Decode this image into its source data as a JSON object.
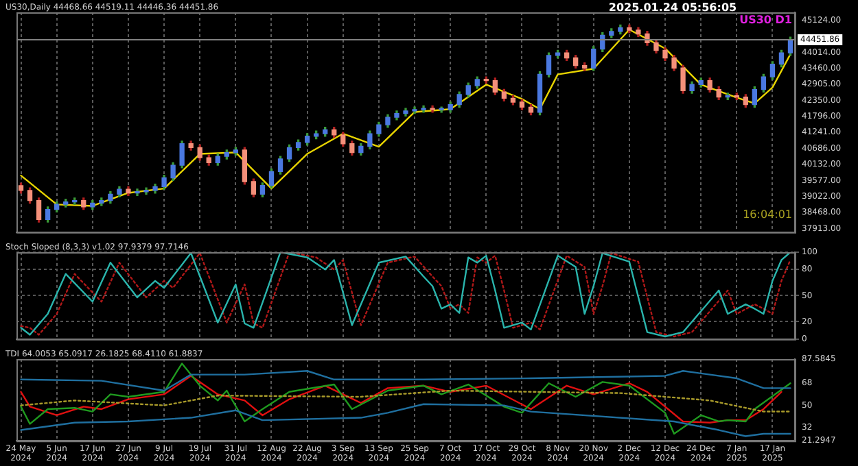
{
  "chart_data": [
    {
      "type": "candlestick",
      "title": "US30,Daily  44468.66 44519.11 44446.36 44451.86",
      "categories": [
        null,
        null,
        null,
        null,
        null,
        null,
        null,
        null,
        null,
        null,
        null,
        null,
        null,
        null,
        null,
        null,
        null,
        null,
        null,
        null,
        null,
        null,
        null,
        null,
        null,
        null,
        null,
        null,
        null,
        null,
        null,
        null,
        null,
        null,
        null,
        null,
        null,
        null,
        null,
        null,
        null,
        null,
        null,
        null,
        null,
        null,
        null,
        null,
        null,
        null,
        null,
        null,
        null,
        null,
        null,
        null,
        null,
        null,
        null,
        null,
        null,
        null,
        null,
        null,
        null,
        null,
        null,
        null,
        null,
        null,
        null,
        null,
        null,
        null,
        null,
        null,
        null,
        null,
        null,
        null,
        null,
        null,
        null,
        null,
        null,
        null,
        null
      ],
      "ohlc": [
        [
          39400,
          39490,
          39144,
          39234
        ],
        [
          39234,
          39324,
          38794,
          38884
        ],
        [
          38884,
          38974,
          38139,
          38229
        ],
        [
          38229,
          38668,
          38139,
          38578
        ],
        [
          38578,
          38843,
          38488,
          38753
        ],
        [
          38753,
          38930,
          38663,
          38840
        ],
        [
          38840,
          38974,
          38750,
          38884
        ],
        [
          38884,
          38974,
          38575,
          38665
        ],
        [
          38665,
          38886,
          38575,
          38796
        ],
        [
          38796,
          38974,
          38706,
          38884
        ],
        [
          38884,
          39193,
          38794,
          39103
        ],
        [
          39103,
          39367,
          39013,
          39277
        ],
        [
          39277,
          39367,
          39056,
          39146
        ],
        [
          39146,
          39280,
          39056,
          39190
        ],
        [
          39190,
          39324,
          39100,
          39234
        ],
        [
          39234,
          39455,
          39144,
          39365
        ],
        [
          39365,
          39761,
          39275,
          39671
        ],
        [
          39671,
          40198,
          39581,
          40108
        ],
        [
          40108,
          40941,
          40018,
          40851
        ],
        [
          40851,
          40941,
          40629,
          40719
        ],
        [
          40719,
          40809,
          40280,
          40370
        ],
        [
          40370,
          40460,
          40105,
          40195
        ],
        [
          40195,
          40504,
          40105,
          40414
        ],
        [
          40414,
          40635,
          40324,
          40545
        ],
        [
          40545,
          40722,
          40455,
          40632
        ],
        [
          40632,
          40722,
          39450,
          39540
        ],
        [
          39540,
          39630,
          39013,
          39103
        ],
        [
          39103,
          39498,
          39013,
          39408
        ],
        [
          39408,
          39979,
          39318,
          39889
        ],
        [
          39889,
          40416,
          39799,
          40326
        ],
        [
          40326,
          40809,
          40236,
          40719
        ],
        [
          40719,
          40984,
          40629,
          40894
        ],
        [
          40894,
          41203,
          40804,
          41113
        ],
        [
          41113,
          41290,
          41023,
          41200
        ],
        [
          41200,
          41421,
          41110,
          41331
        ],
        [
          41331,
          41421,
          41066,
          41156
        ],
        [
          41156,
          41246,
          40761,
          40851
        ],
        [
          40851,
          40941,
          40455,
          40545
        ],
        [
          40545,
          40853,
          40455,
          40763
        ],
        [
          40763,
          41290,
          40673,
          41200
        ],
        [
          41200,
          41596,
          41110,
          41506
        ],
        [
          41506,
          41858,
          41416,
          41768
        ],
        [
          41768,
          41989,
          41678,
          41899
        ],
        [
          41899,
          42077,
          41809,
          41987
        ],
        [
          41987,
          42120,
          41897,
          42030
        ],
        [
          42030,
          42164,
          41940,
          42074
        ],
        [
          42074,
          42164,
          41940,
          42030
        ],
        [
          42030,
          42120,
          41940,
          42030
        ],
        [
          42030,
          42295,
          41940,
          42205
        ],
        [
          42205,
          42645,
          42115,
          42555
        ],
        [
          42555,
          42951,
          42465,
          42861
        ],
        [
          42861,
          43169,
          42771,
          43079
        ],
        [
          43079,
          43169,
          42946,
          43036
        ],
        [
          43036,
          43126,
          42552,
          42642
        ],
        [
          42642,
          42732,
          42334,
          42424
        ],
        [
          42424,
          42514,
          42202,
          42292
        ],
        [
          42292,
          42382,
          42028,
          42118
        ],
        [
          42118,
          42208,
          41853,
          41943
        ],
        [
          41943,
          43344,
          41853,
          43254
        ],
        [
          43254,
          43999,
          43164,
          43909
        ],
        [
          43909,
          44087,
          43819,
          43997
        ],
        [
          43997,
          44087,
          43732,
          43822
        ],
        [
          43822,
          43912,
          43470,
          43560
        ],
        [
          43560,
          43650,
          43382,
          43472
        ],
        [
          43472,
          44218,
          43382,
          44128
        ],
        [
          44128,
          44699,
          44038,
          44609
        ],
        [
          44609,
          44830,
          44519,
          44740
        ],
        [
          44740,
          44961,
          44650,
          44871
        ],
        [
          44871,
          44961,
          44693,
          44783
        ],
        [
          44783,
          44873,
          44562,
          44652
        ],
        [
          44652,
          44742,
          44257,
          44347
        ],
        [
          44347,
          44437,
          43994,
          44084
        ],
        [
          44084,
          44174,
          43732,
          43822
        ],
        [
          43822,
          43912,
          43382,
          43472
        ],
        [
          43472,
          43562,
          42596,
          42686
        ],
        [
          42686,
          42994,
          42596,
          42904
        ],
        [
          42904,
          43126,
          42814,
          43036
        ],
        [
          43036,
          43126,
          42640,
          42730
        ],
        [
          42730,
          42820,
          42377,
          42467
        ],
        [
          42467,
          42601,
          42377,
          42511
        ],
        [
          42511,
          42601,
          42377,
          42467
        ],
        [
          42467,
          42557,
          42115,
          42205
        ],
        [
          42205,
          42820,
          42115,
          42730
        ],
        [
          42730,
          43257,
          42640,
          43167
        ],
        [
          43167,
          43694,
          43077,
          43604
        ],
        [
          43604,
          44087,
          43514,
          43997
        ],
        [
          43997,
          44542,
          43907,
          44452
        ]
      ],
      "series": [
        {
          "type": "line",
          "color": "#e8d400",
          "values": [
            39750,
            null,
            null,
            null,
            38750,
            null,
            null,
            null,
            38700,
            null,
            null,
            null,
            39150,
            null,
            null,
            null,
            39300,
            null,
            null,
            null,
            40500,
            null,
            null,
            null,
            40550,
            null,
            null,
            null,
            39300,
            null,
            null,
            null,
            40500,
            null,
            null,
            null,
            41200,
            null,
            null,
            null,
            40750,
            null,
            null,
            null,
            41950,
            null,
            null,
            null,
            42050,
            null,
            null,
            null,
            42900,
            null,
            null,
            null,
            42400,
            null,
            42050,
            null,
            43250,
            null,
            null,
            null,
            43450,
            null,
            null,
            null,
            44800,
            null,
            null,
            null,
            44150,
            null,
            null,
            null,
            42900,
            null,
            null,
            null,
            42450,
            null,
            42250,
            null,
            42800,
            null,
            43950
          ]
        }
      ],
      "ylim": [
        37790,
        45400
      ],
      "yticks": [
        {
          "value": 37913,
          "label": "37913.00"
        },
        {
          "value": 38468,
          "label": "38468.00"
        },
        {
          "value": 39022,
          "label": "39022.00"
        },
        {
          "value": 39577,
          "label": "39577.00"
        },
        {
          "value": 40132,
          "label": "40132.00"
        },
        {
          "value": 40686,
          "label": "40686.00"
        },
        {
          "value": 41241,
          "label": "41241.00"
        },
        {
          "value": 41796,
          "label": "41796.00"
        },
        {
          "value": 42350,
          "label": "42350.00"
        },
        {
          "value": 42905,
          "label": "42905.00"
        },
        {
          "value": 43460,
          "label": "43460.00"
        },
        {
          "value": 44014,
          "label": "44014.00"
        },
        {
          "value": 45124,
          "label": "45124.00"
        }
      ],
      "ref_lines": [
        {
          "axis": "y",
          "value": 44451.86,
          "label": "44451.86",
          "color": "#808080"
        }
      ],
      "annotations": [
        "2025.01.24 05:56:05",
        "US30 D1",
        "16:04:01"
      ],
      "grid": "x",
      "tick_labels": "y"
    },
    {
      "type": "line",
      "title": "Stoch Sloped (8,3,3) v1.02 97.9379 97.7146",
      "categories": [
        null,
        null,
        null,
        null,
        null,
        null,
        null,
        null,
        null,
        null,
        null,
        null,
        null,
        null,
        null,
        null,
        null,
        null,
        null,
        null,
        null,
        null,
        null,
        null,
        null,
        null,
        null,
        null,
        null,
        null,
        null,
        null,
        null,
        null,
        null,
        null,
        null,
        null,
        null,
        null,
        null,
        null,
        null,
        null,
        null,
        null,
        null,
        null,
        null,
        null,
        null,
        null,
        null,
        null,
        null,
        null,
        null,
        null,
        null,
        null,
        null,
        null,
        null,
        null,
        null,
        null,
        null,
        null,
        null,
        null,
        null,
        null,
        null,
        null,
        null,
        null,
        null,
        null,
        null,
        null,
        null,
        null,
        null,
        null,
        null,
        null,
        null
      ],
      "series": [
        {
          "color": "#2ab5ad",
          "values": [
            13,
            5,
            null,
            29,
            null,
            75,
            null,
            null,
            43,
            null,
            88,
            null,
            null,
            48,
            null,
            67,
            59,
            null,
            null,
            99,
            null,
            null,
            19,
            null,
            63,
            18,
            13,
            null,
            null,
            100,
            null,
            null,
            94,
            null,
            80,
            91,
            null,
            16,
            null,
            null,
            88,
            null,
            null,
            95,
            null,
            72,
            61,
            35,
            40,
            30,
            94,
            88,
            96,
            56,
            13,
            null,
            19,
            11,
            null,
            null,
            96,
            null,
            83,
            29,
            61,
            99,
            null,
            null,
            89,
            null,
            8,
            null,
            3,
            null,
            8,
            null,
            null,
            null,
            56,
            29,
            null,
            40,
            35,
            29,
            67,
            91,
            100
          ]
        },
        {
          "color": "#b01818",
          "line_style": "dotted",
          "values": [
            15,
            13,
            5,
            null,
            29,
            null,
            75,
            null,
            null,
            43,
            null,
            88,
            null,
            null,
            48,
            null,
            67,
            59,
            null,
            null,
            99,
            null,
            null,
            19,
            null,
            63,
            18,
            13,
            null,
            null,
            100,
            null,
            null,
            94,
            null,
            80,
            91,
            null,
            16,
            null,
            null,
            88,
            null,
            null,
            95,
            null,
            72,
            61,
            35,
            40,
            30,
            94,
            88,
            96,
            56,
            13,
            null,
            19,
            11,
            null,
            null,
            96,
            null,
            83,
            29,
            61,
            99,
            null,
            null,
            89,
            null,
            8,
            null,
            3,
            null,
            8,
            null,
            null,
            null,
            56,
            29,
            null,
            40,
            35,
            29,
            67,
            91
          ]
        }
      ],
      "ylim": [
        0,
        100
      ],
      "yticks": [
        0,
        20,
        50,
        80,
        100
      ],
      "grid": true,
      "tick_labels": "y"
    },
    {
      "type": "line",
      "title": "TDI 64.0053 65.0917 26.1825 68.4110 61.8837",
      "categories": [
        "24 May 2024",
        null,
        null,
        null,
        "5 Jun 2024",
        null,
        null,
        null,
        "17 Jun 2024",
        null,
        null,
        null,
        "27 Jun 2024",
        null,
        null,
        null,
        "9 Jul 2024",
        null,
        null,
        null,
        "19 Jul 2024",
        null,
        null,
        null,
        "31 Jul 2024",
        null,
        null,
        null,
        "12 Aug 2024",
        null,
        null,
        null,
        "22 Aug 2024",
        null,
        null,
        null,
        "3 Sep 2024",
        null,
        null,
        null,
        "13 Sep 2024",
        null,
        null,
        null,
        "25 Sep 2024",
        null,
        null,
        null,
        "7 Oct 2024",
        null,
        null,
        null,
        "17 Oct 2024",
        null,
        null,
        null,
        "29 Oct 2024",
        null,
        null,
        null,
        "8 Nov 2024",
        null,
        null,
        null,
        "20 Nov 2024",
        null,
        null,
        null,
        "2 Dec 2024",
        null,
        null,
        null,
        "12 Dec 2024",
        null,
        null,
        null,
        "24 Dec 2024",
        null,
        null,
        null,
        "7 Jan 2025",
        null,
        null,
        null,
        "17 Jan 2025",
        null,
        null
      ],
      "series": [
        {
          "color": "#1f6f9f",
          "values": [
            71,
            null,
            null,
            null,
            null,
            null,
            null,
            null,
            null,
            70,
            null,
            null,
            null,
            null,
            null,
            null,
            62,
            null,
            null,
            75,
            null,
            null,
            null,
            null,
            null,
            75,
            null,
            null,
            null,
            null,
            null,
            null,
            78,
            null,
            null,
            71,
            null,
            null,
            null,
            null,
            null,
            null,
            null,
            null,
            null,
            71,
            null,
            null,
            null,
            null,
            null,
            null,
            null,
            null,
            null,
            null,
            null,
            72,
            null,
            null,
            null,
            null,
            null,
            null,
            null,
            null,
            null,
            null,
            null,
            null,
            null,
            null,
            74,
            null,
            78,
            null,
            null,
            null,
            null,
            null,
            72,
            null,
            null,
            64,
            null,
            null,
            64
          ]
        },
        {
          "color": "#1f6f9f",
          "values": [
            30,
            null,
            null,
            null,
            null,
            null,
            36,
            null,
            null,
            null,
            null,
            null,
            37,
            null,
            null,
            null,
            null,
            null,
            null,
            40,
            null,
            null,
            null,
            null,
            46,
            null,
            null,
            38,
            null,
            null,
            null,
            null,
            null,
            null,
            null,
            null,
            null,
            null,
            40,
            null,
            null,
            44,
            null,
            null,
            null,
            51,
            null,
            null,
            null,
            null,
            null,
            null,
            null,
            null,
            50,
            null,
            null,
            45,
            null,
            null,
            null,
            null,
            null,
            null,
            null,
            null,
            null,
            null,
            null,
            null,
            null,
            null,
            null,
            37,
            null,
            null,
            null,
            null,
            30,
            null,
            null,
            25,
            null,
            27,
            null,
            null,
            27
          ]
        },
        {
          "color": "#a89a2a",
          "line_style": "dotted",
          "values": [
            50,
            null,
            null,
            null,
            null,
            null,
            54,
            null,
            null,
            null,
            null,
            null,
            null,
            null,
            null,
            null,
            50,
            null,
            null,
            null,
            null,
            null,
            58,
            null,
            null,
            null,
            null,
            null,
            null,
            null,
            null,
            null,
            null,
            null,
            null,
            null,
            null,
            null,
            57,
            null,
            null,
            null,
            null,
            null,
            null,
            null,
            null,
            null,
            62,
            null,
            null,
            null,
            null,
            null,
            null,
            null,
            null,
            null,
            null,
            null,
            null,
            null,
            null,
            null,
            null,
            null,
            null,
            60,
            null,
            null,
            null,
            null,
            null,
            null,
            null,
            null,
            null,
            54,
            null,
            null,
            null,
            null,
            null,
            45,
            null,
            null,
            45
          ]
        },
        {
          "color": "#1f9a1f",
          "values": [
            49,
            35,
            null,
            47,
            null,
            null,
            48,
            null,
            45,
            null,
            59,
            null,
            57,
            null,
            null,
            null,
            61,
            null,
            84,
            null,
            66,
            null,
            54,
            62,
            null,
            37,
            null,
            47,
            null,
            null,
            61,
            null,
            null,
            null,
            null,
            67,
            null,
            47,
            null,
            null,
            null,
            62,
            null,
            null,
            null,
            66,
            null,
            59,
            null,
            null,
            67,
            null,
            null,
            null,
            49,
            null,
            44,
            null,
            null,
            68,
            null,
            null,
            57,
            null,
            null,
            69,
            null,
            null,
            66,
            null,
            null,
            null,
            44,
            27,
            null,
            null,
            42,
            null,
            37,
            38,
            null,
            37,
            47,
            null,
            null,
            null,
            68
          ]
        },
        {
          "color": "#e01010",
          "values": [
            61,
            49,
            null,
            null,
            42,
            null,
            null,
            49,
            null,
            47,
            null,
            null,
            55,
            null,
            null,
            null,
            59,
            null,
            null,
            74,
            null,
            null,
            59,
            null,
            null,
            54,
            null,
            42,
            null,
            null,
            55,
            null,
            null,
            null,
            66,
            null,
            null,
            null,
            52,
            null,
            null,
            64,
            null,
            null,
            null,
            66,
            null,
            null,
            61,
            null,
            null,
            null,
            66,
            null,
            null,
            null,
            null,
            47,
            null,
            null,
            null,
            66,
            null,
            null,
            59,
            null,
            null,
            null,
            68,
            null,
            61,
            null,
            null,
            null,
            37,
            null,
            null,
            36,
            null,
            38,
            null,
            38,
            null,
            47,
            null,
            61,
            null
          ]
        }
      ],
      "ylim": [
        21.2947,
        87.5845
      ],
      "yticks": [
        {
          "value": 21.2947,
          "label": "21.2947"
        },
        32,
        50,
        68,
        {
          "value": 87.5845,
          "label": "87.5845"
        }
      ],
      "grid": "x"
    }
  ]
}
